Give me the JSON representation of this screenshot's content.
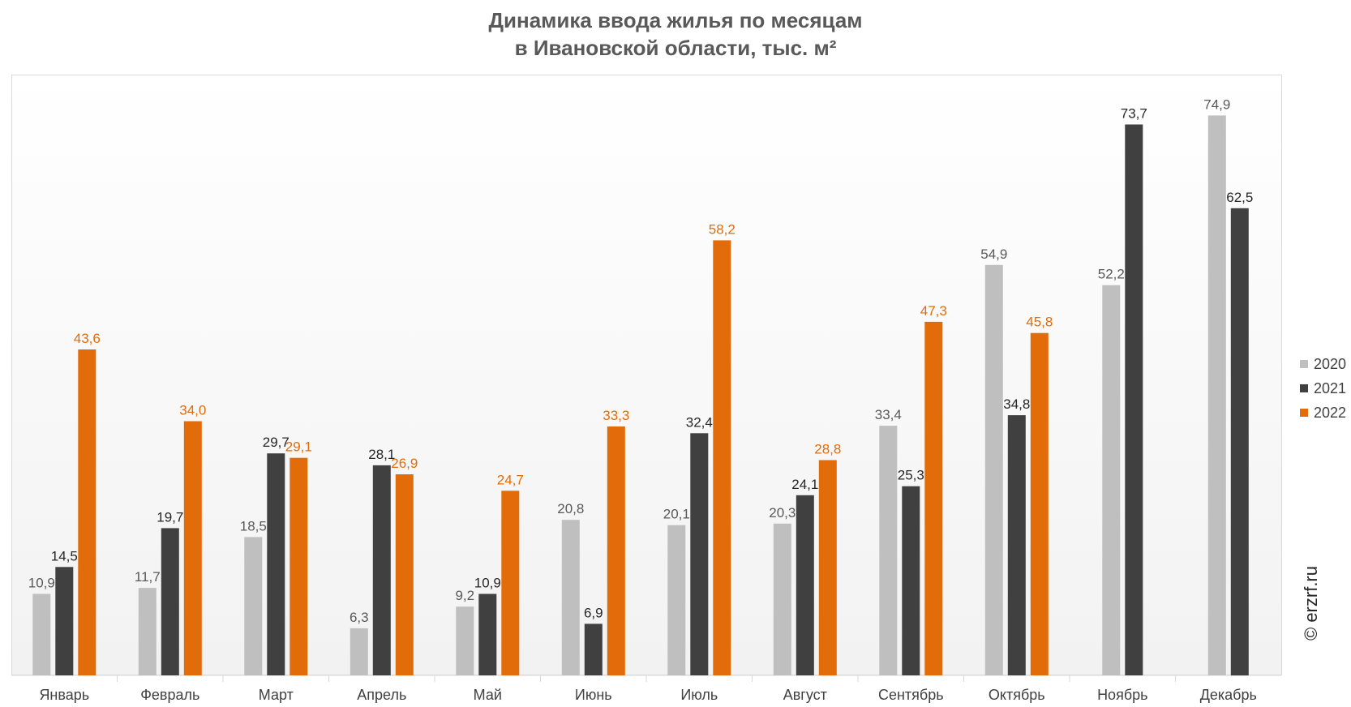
{
  "chart_data": {
    "type": "bar",
    "title_line1": "Динамика ввода жилья по месяцам",
    "title_line2": "в Ивановской области, тыс. м²",
    "xlabel": "",
    "ylabel": "",
    "ylim": [
      0,
      80
    ],
    "grid": false,
    "legend_position": "right",
    "categories": [
      "Январь",
      "Февраль",
      "Март",
      "Апрель",
      "Май",
      "Июнь",
      "Июль",
      "Август",
      "Сентябрь",
      "Октябрь",
      "Ноябрь",
      "Декабрь"
    ],
    "series": [
      {
        "name": "2020",
        "color": "#bfbfbf",
        "label_color": "#595959",
        "values": [
          10.9,
          11.7,
          18.5,
          6.3,
          9.2,
          20.8,
          20.1,
          20.3,
          33.4,
          54.9,
          52.2,
          74.9
        ],
        "labels": [
          "10,9",
          "11,7",
          "18,5",
          "6,3",
          "9,2",
          "20,8",
          "20,1",
          "20,3",
          "33,4",
          "54,9",
          "52,2",
          "74,9"
        ]
      },
      {
        "name": "2021",
        "color": "#404040",
        "label_color": "#262626",
        "values": [
          14.5,
          19.7,
          29.7,
          28.1,
          10.9,
          6.9,
          32.4,
          24.1,
          25.3,
          34.8,
          73.7,
          62.5
        ],
        "labels": [
          "14,5",
          "19,7",
          "29,7",
          "28,1",
          "10,9",
          "6,9",
          "32,4",
          "24,1",
          "25,3",
          "34,8",
          "73,7",
          "62,5"
        ]
      },
      {
        "name": "2022",
        "color": "#e36c0a",
        "label_color": "#e36c0a",
        "values": [
          43.6,
          34.0,
          29.1,
          26.9,
          24.7,
          33.3,
          58.2,
          28.8,
          47.3,
          45.8,
          null,
          null
        ],
        "labels": [
          "43,6",
          "34,0",
          "29,1",
          "26,9",
          "24,7",
          "33,3",
          "58,2",
          "28,8",
          "47,3",
          "45,8",
          null,
          null
        ]
      }
    ]
  },
  "copyright": "© erzrf.ru"
}
